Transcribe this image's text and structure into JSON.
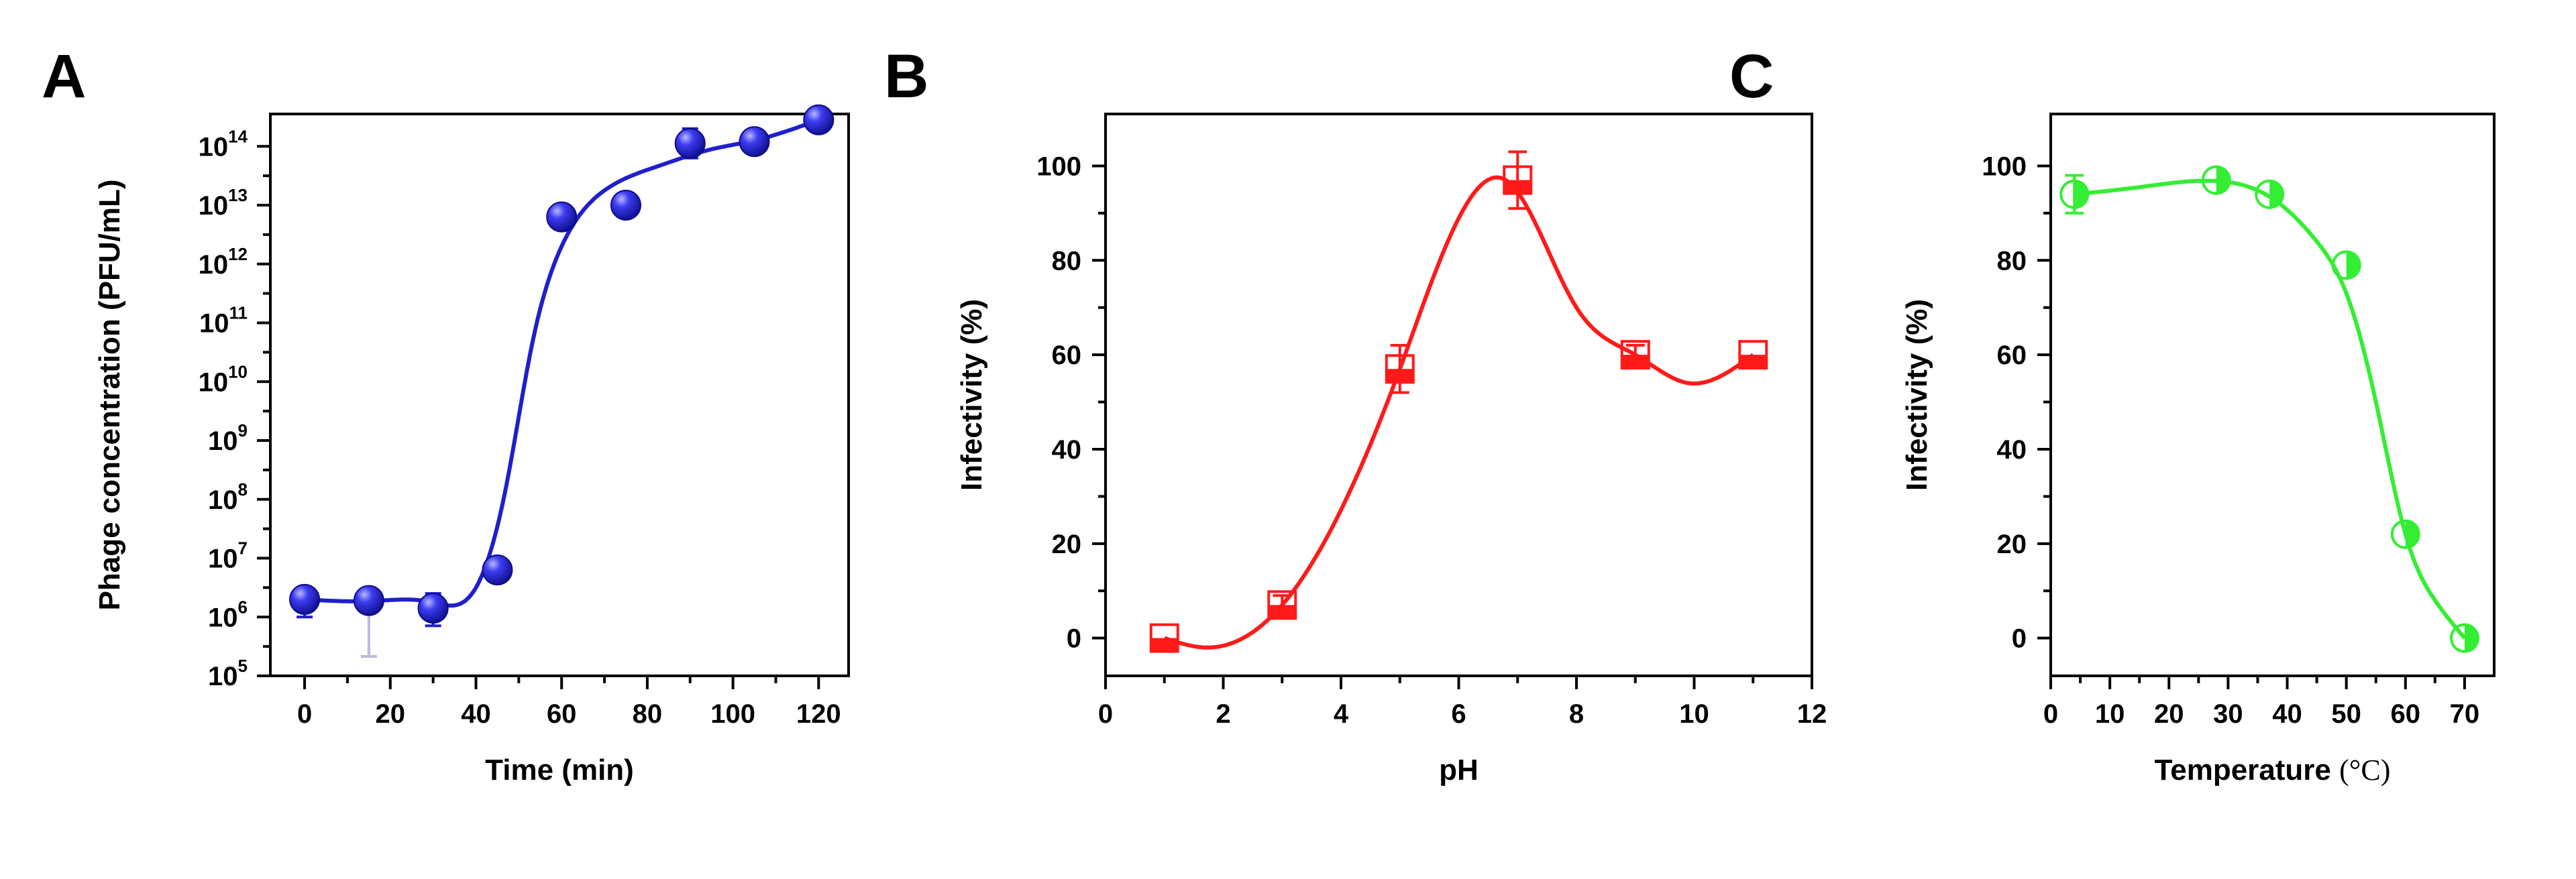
{
  "chart_data": [
    {
      "panel": "A",
      "type": "scatter",
      "xlabel": "Time (min)",
      "ylabel": "Phage concentration (PFU/mL)",
      "yscale": "log",
      "xlim": [
        -8,
        127
      ],
      "ylim": [
        5,
        14.55
      ],
      "xticks": [
        0,
        20,
        40,
        60,
        80,
        100,
        120
      ],
      "yticks": [
        {
          "base": "10",
          "exp": "5",
          "log": 5
        },
        {
          "base": "10",
          "exp": "6",
          "log": 6
        },
        {
          "base": "10",
          "exp": "7",
          "log": 7
        },
        {
          "base": "10",
          "exp": "8",
          "log": 8
        },
        {
          "base": "10",
          "exp": "9",
          "log": 9
        },
        {
          "base": "10",
          "exp": "10",
          "log": 10
        },
        {
          "base": "10",
          "exp": "11",
          "log": 11
        },
        {
          "base": "10",
          "exp": "12",
          "log": 12
        },
        {
          "base": "10",
          "exp": "13",
          "log": 13
        },
        {
          "base": "10",
          "exp": "14",
          "log": 14
        }
      ],
      "color": "#1f1fcc",
      "marker": "sphere",
      "series": [
        {
          "name": "Phage concentration",
          "x": [
            0,
            15,
            30,
            45,
            60,
            75,
            90,
            105,
            120
          ],
          "log10_y": [
            6.3,
            6.28,
            6.15,
            6.8,
            12.8,
            13.0,
            14.05,
            14.08,
            14.45
          ],
          "err_low": [
            0.3,
            0.95,
            0.3,
            0,
            0,
            0,
            0.25,
            0,
            0
          ],
          "err_high": [
            0.12,
            0,
            0.25,
            0,
            0,
            0,
            0.25,
            0,
            0
          ]
        }
      ]
    },
    {
      "panel": "B",
      "type": "scatter",
      "xlabel": "pH",
      "ylabel": "Infectivity (%)",
      "xlim": [
        0,
        12
      ],
      "ylim": [
        -8,
        111
      ],
      "xticks": [
        0,
        2,
        4,
        6,
        8,
        10,
        12
      ],
      "yticks": [
        0,
        20,
        40,
        60,
        80,
        100
      ],
      "color": "#ff1a1a",
      "marker": "half-filled-square",
      "series": [
        {
          "name": "Infectivity",
          "x": [
            1,
            3,
            5,
            7,
            9,
            11
          ],
          "y": [
            0,
            7,
            57,
            97,
            60,
            60
          ],
          "err": [
            0,
            2,
            5,
            6,
            2,
            0
          ]
        }
      ]
    },
    {
      "panel": "C",
      "type": "scatter",
      "xlabel": "Temperature (°C)",
      "ylabel": "Infectivity (%)",
      "xlim": [
        0,
        75
      ],
      "ylim": [
        -8,
        111
      ],
      "xticks": [
        0,
        10,
        20,
        30,
        40,
        50,
        60,
        70
      ],
      "yticks": [
        0,
        20,
        40,
        60,
        80,
        100
      ],
      "color": "#33ee33",
      "marker": "half-filled-circle",
      "series": [
        {
          "name": "Infectivity",
          "x": [
            4,
            28,
            37,
            50,
            60,
            70
          ],
          "y": [
            94,
            97,
            94,
            79,
            22,
            0
          ],
          "err": [
            4,
            0,
            0,
            0,
            0,
            0
          ]
        }
      ]
    }
  ]
}
